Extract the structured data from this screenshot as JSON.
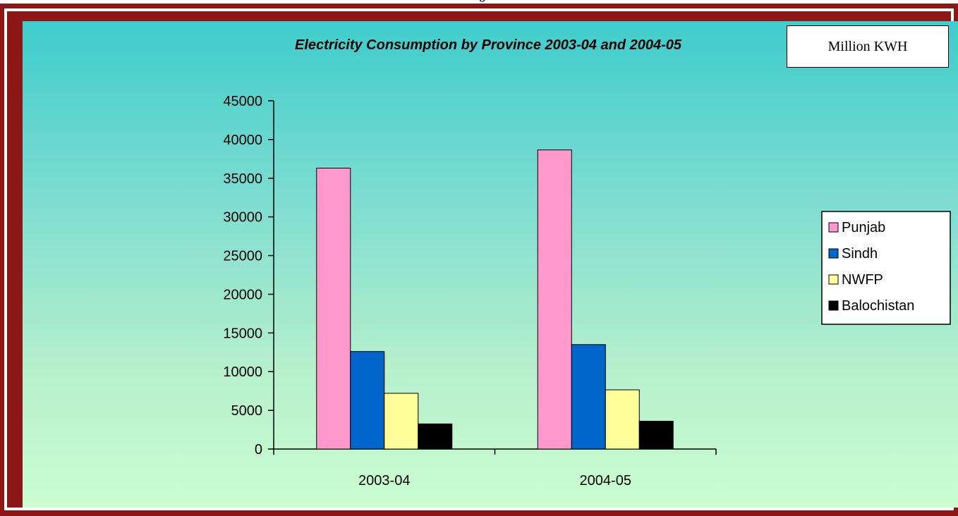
{
  "page": {
    "top_text": "rg",
    "unit_label": "Million KWH"
  },
  "colors": {
    "frame": "#8b1717",
    "Punjab": "#ff99cc",
    "Sindh": "#0066cc",
    "NWFP": "#ffff99",
    "Balochistan": "#000000"
  },
  "chart_data": {
    "type": "bar",
    "title": "Electricity Consumption by Province 2003-04 and 2004-05",
    "xlabel": "",
    "ylabel": "",
    "categories": [
      "2003-04",
      "2004-05"
    ],
    "series": [
      {
        "name": "Punjab",
        "values": [
          36300,
          38650
        ]
      },
      {
        "name": "Sindh",
        "values": [
          12600,
          13500
        ]
      },
      {
        "name": "NWFP",
        "values": [
          7200,
          7650
        ]
      },
      {
        "name": "Balochistan",
        "values": [
          3250,
          3600
        ]
      }
    ],
    "ylim": [
      0,
      45000
    ],
    "yticks": [
      0,
      5000,
      10000,
      15000,
      20000,
      25000,
      30000,
      35000,
      40000,
      45000
    ],
    "grid": false,
    "legend_position": "right"
  }
}
